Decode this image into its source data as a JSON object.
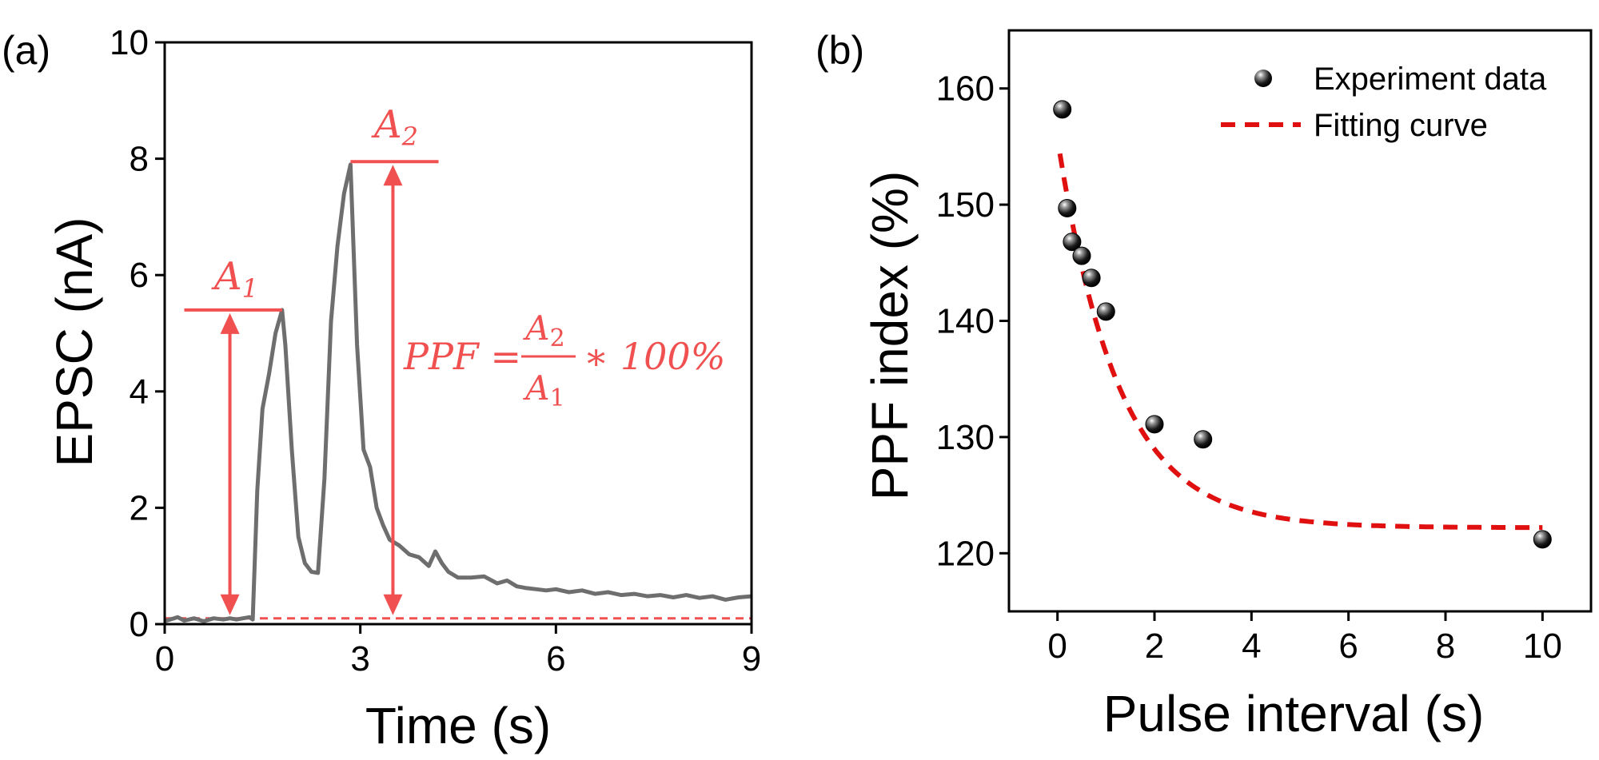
{
  "chart_data": [
    {
      "type": "line",
      "panel_label": "(a)",
      "xlabel": "Time (s)",
      "ylabel": "EPSC (nA)",
      "xlim": [
        0,
        9
      ],
      "ylim": [
        0,
        10
      ],
      "xticks": [
        "0",
        "3",
        "6",
        "9"
      ],
      "yticks": [
        "0",
        "2",
        "4",
        "6",
        "8",
        "10"
      ],
      "series": [
        {
          "name": "EPSC",
          "color": "#6e6e6e",
          "x": [
            0,
            0.2,
            0.3,
            0.45,
            0.6,
            0.75,
            0.9,
            1.0,
            1.1,
            1.2,
            1.3,
            1.35,
            1.42,
            1.5,
            1.6,
            1.7,
            1.8,
            1.85,
            1.95,
            2.05,
            2.15,
            2.25,
            2.35,
            2.45,
            2.55,
            2.65,
            2.75,
            2.85,
            2.95,
            3.05,
            3.15,
            3.25,
            3.35,
            3.45,
            3.6,
            3.75,
            3.9,
            4.05,
            4.15,
            4.25,
            4.35,
            4.5,
            4.7,
            4.9,
            5.1,
            5.25,
            5.4,
            5.55,
            5.7,
            5.85,
            6.0,
            6.2,
            6.4,
            6.6,
            6.8,
            7.0,
            7.2,
            7.4,
            7.6,
            7.8,
            8.0,
            8.2,
            8.4,
            8.6,
            8.8,
            9.0
          ],
          "y": [
            0.05,
            0.12,
            0.06,
            0.1,
            0.05,
            0.1,
            0.08,
            0.1,
            0.08,
            0.1,
            0.12,
            0.08,
            2.3,
            3.7,
            4.3,
            5.0,
            5.4,
            4.8,
            3.0,
            1.5,
            1.05,
            0.9,
            0.88,
            2.5,
            5.2,
            6.5,
            7.4,
            7.9,
            4.8,
            3.0,
            2.7,
            2.0,
            1.7,
            1.45,
            1.35,
            1.2,
            1.15,
            1.0,
            1.25,
            1.05,
            0.9,
            0.8,
            0.8,
            0.82,
            0.7,
            0.75,
            0.65,
            0.62,
            0.6,
            0.58,
            0.6,
            0.55,
            0.58,
            0.52,
            0.55,
            0.5,
            0.52,
            0.48,
            0.5,
            0.46,
            0.5,
            0.45,
            0.48,
            0.42,
            0.46,
            0.48
          ]
        }
      ],
      "baseline": {
        "value": 0.1,
        "color": "#f05050",
        "style": "dashed"
      },
      "annotations": [
        {
          "label": "A1",
          "base": "A",
          "sub": "1",
          "x": 1.0,
          "y_from": 0.1,
          "y_to": 5.4,
          "hline_x": [
            0.3,
            1.8
          ]
        },
        {
          "label": "A2",
          "base": "A",
          "sub": "2",
          "x": 3.5,
          "y_from": 0.1,
          "y_to": 7.95,
          "hline_x": [
            2.85,
            4.2
          ]
        }
      ],
      "formula": {
        "lhs": "PPF =",
        "num_base": "A",
        "num_sub": "2",
        "den_base": "A",
        "den_sub": "1",
        "rhs": "∗ 100%"
      }
    },
    {
      "type": "scatter",
      "panel_label": "(b)",
      "xlabel": "Pulse interval (s)",
      "ylabel": "PPF index (%)",
      "xlim": [
        -1,
        11
      ],
      "ylim": [
        115,
        165
      ],
      "xticks": [
        "0",
        "2",
        "4",
        "6",
        "8",
        "10"
      ],
      "yticks": [
        "120",
        "130",
        "140",
        "150",
        "160"
      ],
      "series": [
        {
          "name": "Experiment data",
          "x": [
            0.1,
            0.2,
            0.3,
            0.5,
            0.7,
            1.0,
            2.0,
            3.0,
            10.0
          ],
          "y": [
            158.2,
            149.7,
            146.8,
            145.6,
            143.7,
            140.8,
            131.1,
            129.8,
            121.2
          ]
        },
        {
          "name": "Fitting curve",
          "type": "line",
          "style": "dashed",
          "color": "#e01010",
          "model": {
            "y0": 122.2,
            "a": 33.5,
            "tau": 1.25
          },
          "x_range": [
            0.05,
            10.0
          ]
        }
      ],
      "legend_position": "top-right"
    }
  ]
}
